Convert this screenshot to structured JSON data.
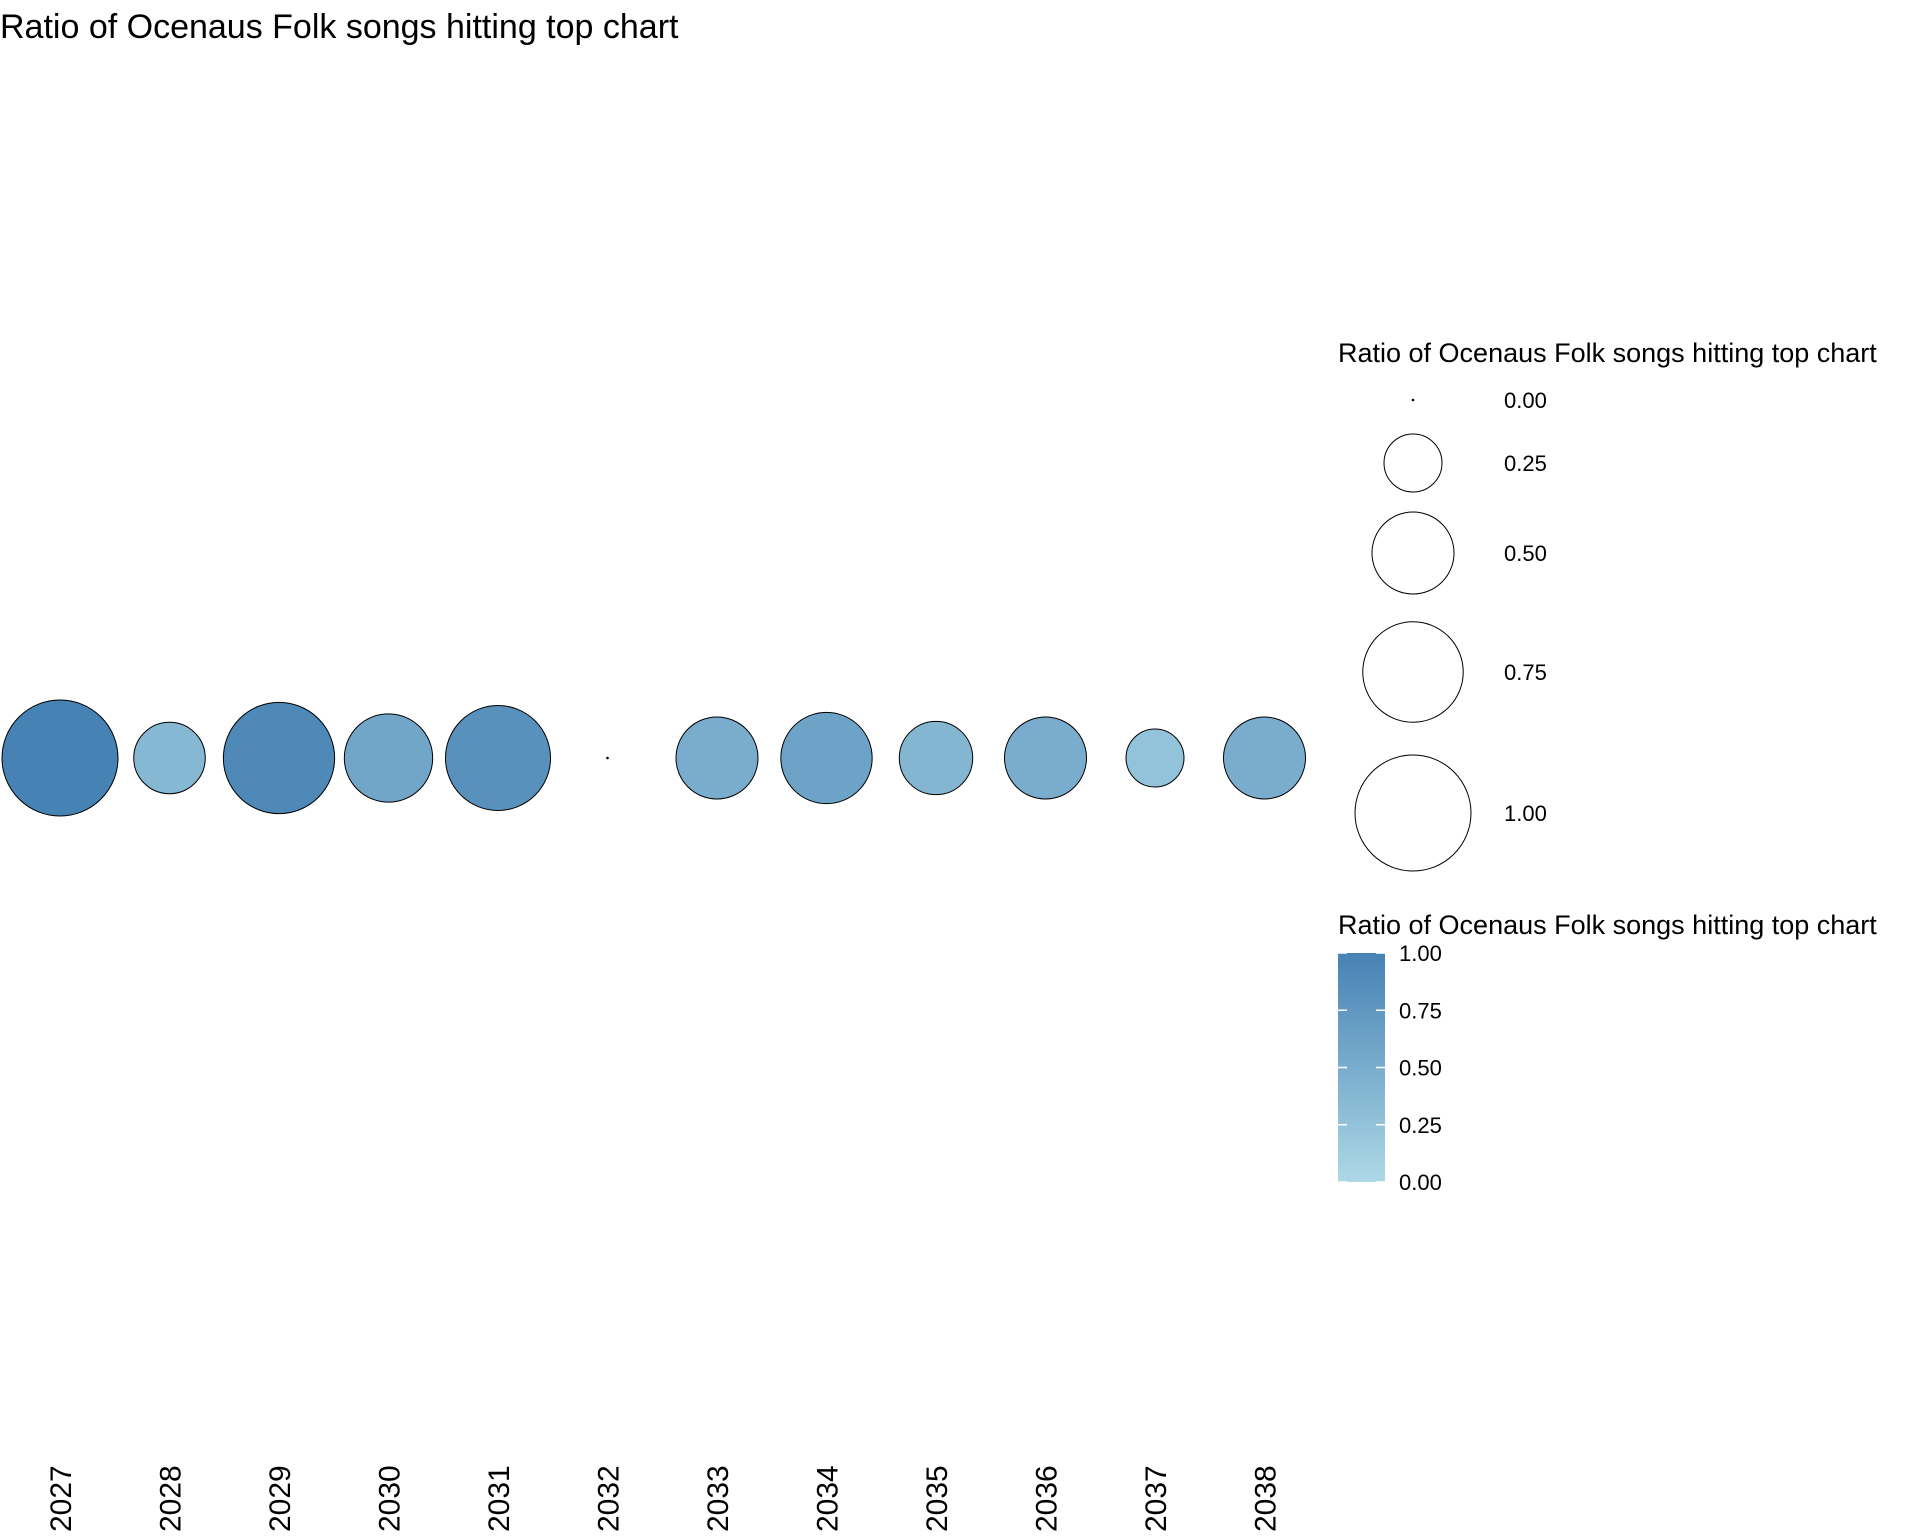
{
  "chart_data": {
    "type": "scatter",
    "title": "Ratio of Ocenaus Folk songs hitting top chart",
    "xlabel": "",
    "ylabel": "",
    "x": [
      "2027",
      "2028",
      "2029",
      "2030",
      "2031",
      "2032",
      "2033",
      "2034",
      "2035",
      "2036",
      "2037",
      "2038"
    ],
    "values": [
      1.0,
      0.38,
      0.92,
      0.58,
      0.82,
      0.0,
      0.5,
      0.62,
      0.4,
      0.5,
      0.25,
      0.5
    ],
    "grid": false,
    "size_legend": {
      "title": "Ratio of Ocenaus Folk songs hitting top chart",
      "breaks": [
        "0.00",
        "0.25",
        "0.50",
        "0.75",
        "1.00"
      ],
      "values": [
        0.0,
        0.25,
        0.5,
        0.75,
        1.0
      ]
    },
    "color_legend": {
      "title": "Ratio of Ocenaus Folk songs hitting top chart",
      "breaks": [
        "0.00",
        "0.25",
        "0.50",
        "0.75",
        "1.00"
      ],
      "values": [
        0.0,
        0.25,
        0.5,
        0.75,
        1.0
      ],
      "low_color": "#add8e6",
      "high_color": "#4682b4"
    },
    "outline_color": "#000000"
  }
}
